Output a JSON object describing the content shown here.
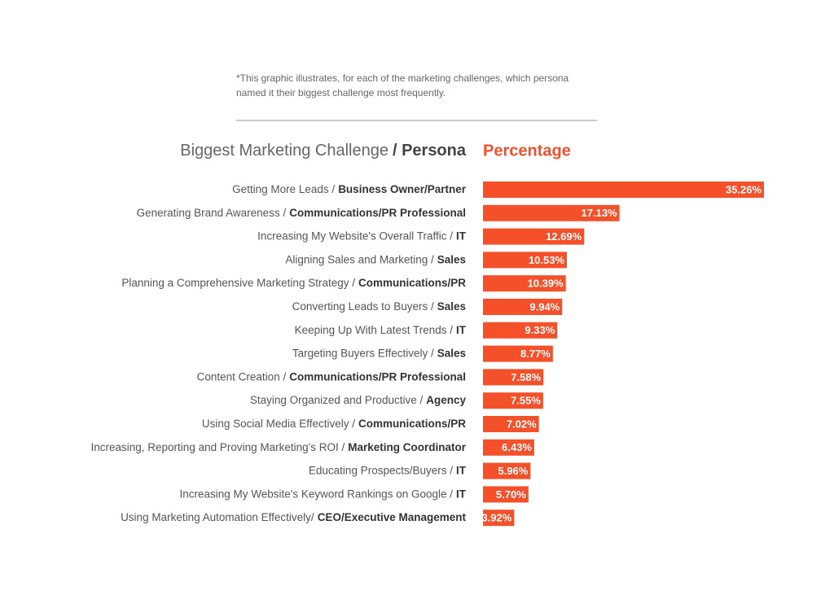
{
  "note": [
    "*This graphic illustrates, for each of the marketing challenges, which persona",
    "named it their biggest challenge most frequently."
  ],
  "chart_data": {
    "type": "bar",
    "orientation": "horizontal",
    "header": {
      "label": "Biggest Marketing Challenge",
      "label_bold": "/ Persona",
      "value": "Percentage"
    },
    "categories": [
      "Getting More Leads /",
      "Generating Brand Awareness /",
      "Increasing My Website's Overall Traffic /",
      "Aligning Sales and Marketing /",
      "Planning a Comprehensive Marketing Strategy /",
      "Converting Leads to Buyers /",
      "Keeping Up With Latest Trends /",
      "Targeting Buyers Effectively /",
      "Content Creation /",
      "Staying Organized and Productive /",
      "Using Social Media Effectively /",
      "Increasing, Reporting and Proving Marketing's ROI /",
      "Educating Prospects/Buyers /",
      "Increasing My Website's Keyword Rankings on Google /",
      "Using Marketing Automation Effectively/"
    ],
    "personas": [
      "Business Owner/Partner",
      "Communications/PR Professional",
      "IT",
      "Sales",
      "Communications/PR",
      "Sales",
      "IT",
      "Sales",
      "Communications/PR Professional",
      "Agency",
      "Communications/PR",
      "Marketing Coordinator",
      "IT",
      "IT",
      "CEO/Executive Management"
    ],
    "values": [
      35.26,
      17.13,
      12.69,
      10.53,
      10.39,
      9.94,
      9.33,
      8.77,
      7.58,
      7.55,
      7.02,
      6.43,
      5.96,
      5.7,
      3.92
    ],
    "value_labels": [
      "35.26%",
      "17.13%",
      "12.69%",
      "10.53%",
      "10.39%",
      "9.94%",
      "9.33%",
      "8.77%",
      "7.58%",
      "7.55%",
      "7.02%",
      "6.43%",
      "5.96%",
      "5.70%",
      "3.92%"
    ],
    "color": "#f4502a"
  }
}
